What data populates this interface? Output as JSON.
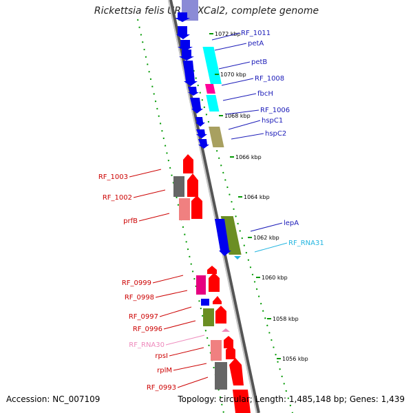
{
  "title": "Rickettsia felis URRWXCal2, complete genome",
  "footer": {
    "accession": "Accession: NC_007109",
    "stats": "Topology: circular; Length: 1,485,148 bp; Genes: 1,439"
  },
  "colors": {
    "backbone": "#888888",
    "cds": "#0000ee",
    "tick": "#009900",
    "right_label": "#1a1ab8",
    "left_label": "#cc0000",
    "rna_label": "#22b5e0",
    "rna_left_label": "#ee88bb"
  },
  "ticks": [
    "1072 kbp",
    "1070 kbp",
    "1068 kbp",
    "1066 kbp",
    "1064 kbp",
    "1062 kbp",
    "1060 kbp",
    "1058 kbp",
    "1056 kbp"
  ],
  "right_labels": [
    "RF_1011",
    "petA",
    "petB",
    "RF_1008",
    "fbcH",
    "RF_1006",
    "hspC1",
    "hspC2",
    "lepA",
    "RF_RNA31"
  ],
  "left_labels": [
    "RF_1003",
    "RF_1002",
    "prfB",
    "RF_0999",
    "RF_0998",
    "RF_0997",
    "RF_0996",
    "RF_RNA30",
    "rpsI",
    "rplM",
    "RF_0993"
  ]
}
